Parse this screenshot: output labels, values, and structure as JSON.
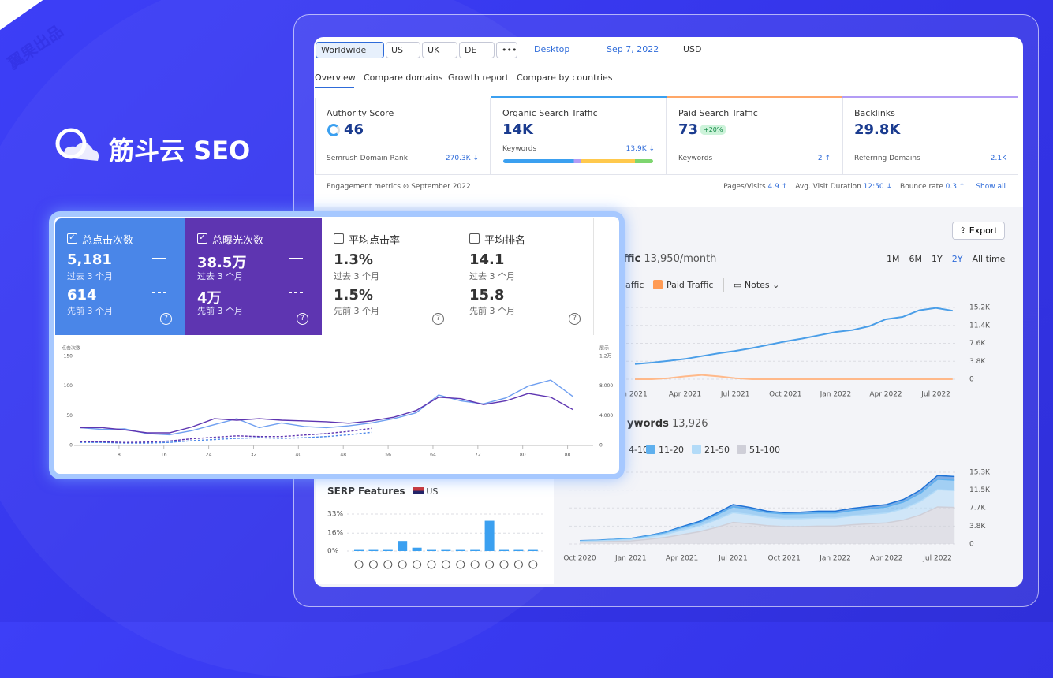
{
  "brand": {
    "badge": "翼果出品",
    "name": "筋斗云 SEO"
  },
  "toolbar": {
    "regions": [
      "Worldwide",
      "US",
      "UK",
      "DE",
      "•••"
    ],
    "device": "Desktop",
    "date": "Sep 7, 2022",
    "currency": "USD"
  },
  "tabs": [
    "Overview",
    "Compare domains",
    "Growth report",
    "Compare by countries"
  ],
  "cards": [
    {
      "label": "Authority Score",
      "value": "46",
      "sub": "Semrush Domain Rank",
      "sub_value": "270.3K ↓",
      "color": "#ffffff"
    },
    {
      "label": "Organic Search Traffic",
      "value": "14K",
      "sub": "Keywords",
      "sub_value": "13.9K ↓",
      "color": "#3ba0f0"
    },
    {
      "label": "Paid Search Traffic",
      "value": "73",
      "badge": "+20%",
      "sub": "Keywords",
      "sub_value": "2 ↑",
      "color": "#ffa768"
    },
    {
      "label": "Backlinks",
      "value": "29.8K",
      "sub": "Referring Domains",
      "sub_value": "2.1K",
      "color": "#b39cf5"
    }
  ],
  "engagement": {
    "label": "Engagement metrics",
    "period": "September 2022",
    "metrics": [
      {
        "label": "Pages/Visits",
        "value": "4.9 ↑"
      },
      {
        "label": "Avg. Visit Duration",
        "value": "12:50 ↓"
      },
      {
        "label": "Bounce rate",
        "value": "0.3 ↑"
      }
    ],
    "link": "Show all"
  },
  "export": "Export",
  "periods": [
    "1M",
    "6M",
    "1Y",
    "2Y",
    "All time"
  ],
  "notes": "Notes",
  "tiles": [
    {
      "label": "总点击次数",
      "checked": true,
      "color": "#4a86e8",
      "value": "5,181",
      "period": "过去 3 个月",
      "prev_value": "614",
      "prev_period": "先前 3 个月"
    },
    {
      "label": "总曝光次数",
      "checked": true,
      "color": "#5e35b1",
      "value": "38.5万",
      "period": "过去 3 个月",
      "prev_value": "4万",
      "prev_period": "先前 3 个月"
    },
    {
      "label": "平均点击率",
      "checked": false,
      "color": "#ffffff",
      "value": "1.3%",
      "period": "过去 3 个月",
      "prev_value": "1.5%",
      "prev_period": "先前 3 个月"
    },
    {
      "label": "平均排名",
      "checked": false,
      "color": "#ffffff",
      "value": "14.1",
      "period": "过去 3 个月",
      "prev_value": "15.8",
      "prev_period": "先前 3 个月"
    }
  ],
  "chart_data": [
    {
      "type": "line",
      "title": "ffic",
      "subtitle": "13,950/month",
      "categories": [
        "n 2021",
        null,
        null,
        "Apr 2021",
        null,
        null,
        "Jul 2021",
        null,
        null,
        "Oct 2021",
        null,
        null,
        "Jan 2022",
        null,
        null,
        "Apr 2022",
        null,
        null,
        "Jul 2022",
        null
      ],
      "series": [
        {
          "name": "affic",
          "color": "#4a9ee8",
          "values": [
            3200,
            3500,
            3900,
            4300,
            4900,
            5500,
            6000,
            6600,
            7300,
            8000,
            8600,
            9300,
            10000,
            10400,
            11200,
            12700,
            13200,
            14600,
            15100,
            14500
          ]
        },
        {
          "name": "Paid Traffic",
          "color": "#ffb98a",
          "values": [
            0,
            0,
            200,
            600,
            900,
            600,
            200,
            0,
            0,
            0,
            0,
            0,
            0,
            0,
            0,
            0,
            0,
            0,
            0,
            0
          ]
        }
      ],
      "ylim": [
        0,
        15200
      ],
      "yticks": [
        0,
        {
          "value": 3800,
          "label": "3.8K"
        },
        {
          "value": 7600,
          "label": "7.6K"
        },
        {
          "value": 11400,
          "label": "11.4K"
        },
        {
          "value": 15200,
          "label": "15.2K"
        }
      ],
      "grid": true
    },
    {
      "type": "stacked-area",
      "title": "ywords",
      "subtitle": "13,926",
      "categories": [
        "Oct 2020",
        null,
        null,
        "Jan 2021",
        null,
        null,
        "Apr 2021",
        null,
        null,
        "Jul 2021",
        null,
        null,
        "Oct 2021",
        null,
        null,
        "Jan 2022",
        null,
        null,
        "Apr 2022",
        null,
        null,
        "Jul 2022",
        null
      ],
      "series": [
        {
          "name": "51-100",
          "color": "#cfcfd8",
          "values": [
            400,
            450,
            550,
            650,
            1000,
            1400,
            2000,
            2600,
            3500,
            4600,
            4300,
            3900,
            3700,
            3700,
            3800,
            3800,
            4100,
            4300,
            4500,
            5100,
            6200,
            7900,
            7800
          ]
        },
        {
          "name": "21-50",
          "color": "#b3dbf8",
          "values": [
            170,
            200,
            250,
            300,
            450,
            620,
            950,
            1200,
            1650,
            2100,
            1950,
            1750,
            1700,
            1700,
            1750,
            1750,
            1900,
            2000,
            2100,
            2400,
            2900,
            3700,
            3600
          ]
        },
        {
          "name": "11-20",
          "color": "#5fb0ee",
          "values": [
            100,
            110,
            150,
            180,
            270,
            380,
            550,
            720,
            1000,
            1250,
            1150,
            1050,
            1000,
            1050,
            1050,
            1050,
            1150,
            1200,
            1300,
            1450,
            1750,
            2200,
            2200
          ]
        },
        {
          "name": "4-10",
          "color": "#1f73d6",
          "values": [
            30,
            40,
            50,
            70,
            80,
            100,
            200,
            280,
            350,
            450,
            400,
            300,
            300,
            350,
            400,
            400,
            450,
            500,
            500,
            550,
            650,
            800,
            800
          ]
        }
      ],
      "ylim": [
        0,
        15300
      ],
      "yticks": [
        0,
        {
          "value": 3800,
          "label": "3.8K"
        },
        {
          "value": 7700,
          "label": "7.7K"
        },
        {
          "value": 11500,
          "label": "11.5K"
        },
        {
          "value": 15300,
          "label": "15.3K"
        }
      ],
      "grid": true
    },
    {
      "type": "bar",
      "title": "SERP Features",
      "region": "US",
      "color": "#3ba0f0",
      "categories": [
        null,
        null,
        null,
        null,
        null,
        null,
        null,
        null,
        null,
        null,
        null,
        null,
        null
      ],
      "values": [
        1,
        1,
        1,
        9,
        3,
        1,
        1,
        1,
        1,
        27,
        1,
        1,
        1
      ],
      "ylim": [
        0,
        33
      ],
      "yticks": [
        {
          "value": 0,
          "label": "0%"
        },
        {
          "value": 16,
          "label": "16%"
        },
        {
          "value": 33,
          "label": "33%"
        }
      ],
      "grid": true
    },
    {
      "type": "line",
      "y_label": "点击次数",
      "y2_label": "展示",
      "x": [
        1,
        5,
        9,
        13,
        17,
        21,
        25,
        29,
        33,
        37,
        41,
        45,
        49,
        53,
        57,
        61,
        65,
        69,
        73,
        77,
        81,
        85,
        89
      ],
      "xlim": [
        0,
        92
      ],
      "xticks": [
        8,
        16,
        24,
        32,
        40,
        48,
        56,
        64,
        72,
        80,
        88
      ],
      "ylim": [
        0,
        150
      ],
      "yticks": [
        0,
        50,
        100,
        150
      ],
      "y2lim": [
        0,
        12000
      ],
      "y2ticks": [
        0,
        {
          "value": 4000,
          "label": "4,000"
        },
        {
          "value": 8000,
          "label": "8,000"
        },
        {
          "value": 12000,
          "label": "1.2万"
        }
      ],
      "series": [
        {
          "color": "#6f9ff0",
          "dash": false,
          "values": [
            30,
            27,
            28,
            20,
            18,
            25,
            35,
            45,
            30,
            38,
            32,
            30,
            33,
            38,
            45,
            55,
            85,
            75,
            70,
            80,
            100,
            110,
            82
          ]
        },
        {
          "color": "#5e35b1",
          "dash": false,
          "axis": "y2",
          "values": [
            2400,
            2400,
            2100,
            1700,
            1700,
            2500,
            3600,
            3400,
            3600,
            3400,
            3300,
            3200,
            3000,
            3300,
            3800,
            4700,
            6500,
            6300,
            5500,
            6000,
            7000,
            6500,
            4800
          ]
        },
        {
          "color": "#4a86e8",
          "dash": true,
          "values": [
            5,
            5,
            4,
            4,
            5,
            8,
            10,
            12,
            13,
            12,
            13,
            15,
            18,
            22,
            null,
            null,
            null,
            null,
            null,
            null,
            null,
            null,
            null
          ]
        },
        {
          "color": "#5e35b1",
          "dash": true,
          "axis": "y2",
          "values": [
            500,
            500,
            400,
            450,
            600,
            900,
            1100,
            1300,
            1200,
            1200,
            1400,
            1600,
            1900,
            2300,
            null,
            null,
            null,
            null,
            null,
            null,
            null,
            null,
            null
          ]
        }
      ]
    }
  ]
}
